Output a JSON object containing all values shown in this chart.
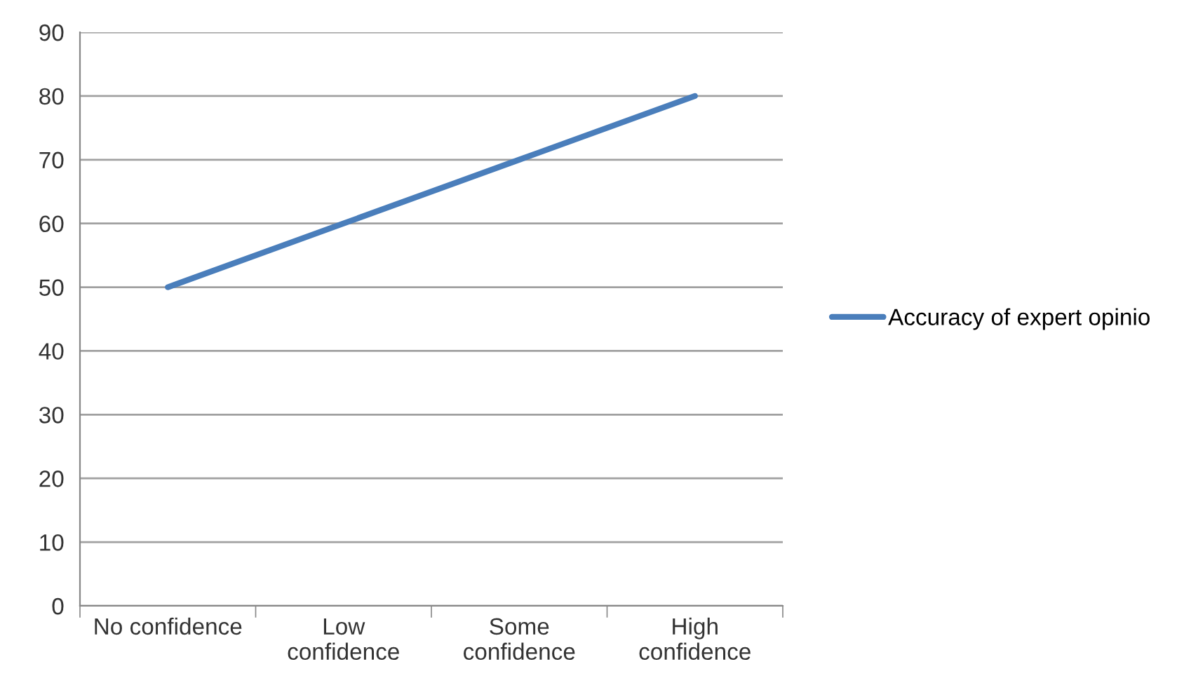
{
  "chart_data": {
    "type": "line",
    "categories": [
      "No confidence",
      "Low\nconfidence",
      "Some\nconfidence",
      "High\nconfidence"
    ],
    "series": [
      {
        "name": "Accuracy of expert opinio",
        "color": "#4a7ebb",
        "values": [
          50,
          60,
          70,
          80
        ]
      }
    ],
    "ylim": [
      0,
      90
    ],
    "yticks": [
      0,
      10,
      20,
      30,
      40,
      50,
      60,
      70,
      80,
      90
    ],
    "grid": "y",
    "legend": "right",
    "marker": "none",
    "line_style": "solid"
  }
}
